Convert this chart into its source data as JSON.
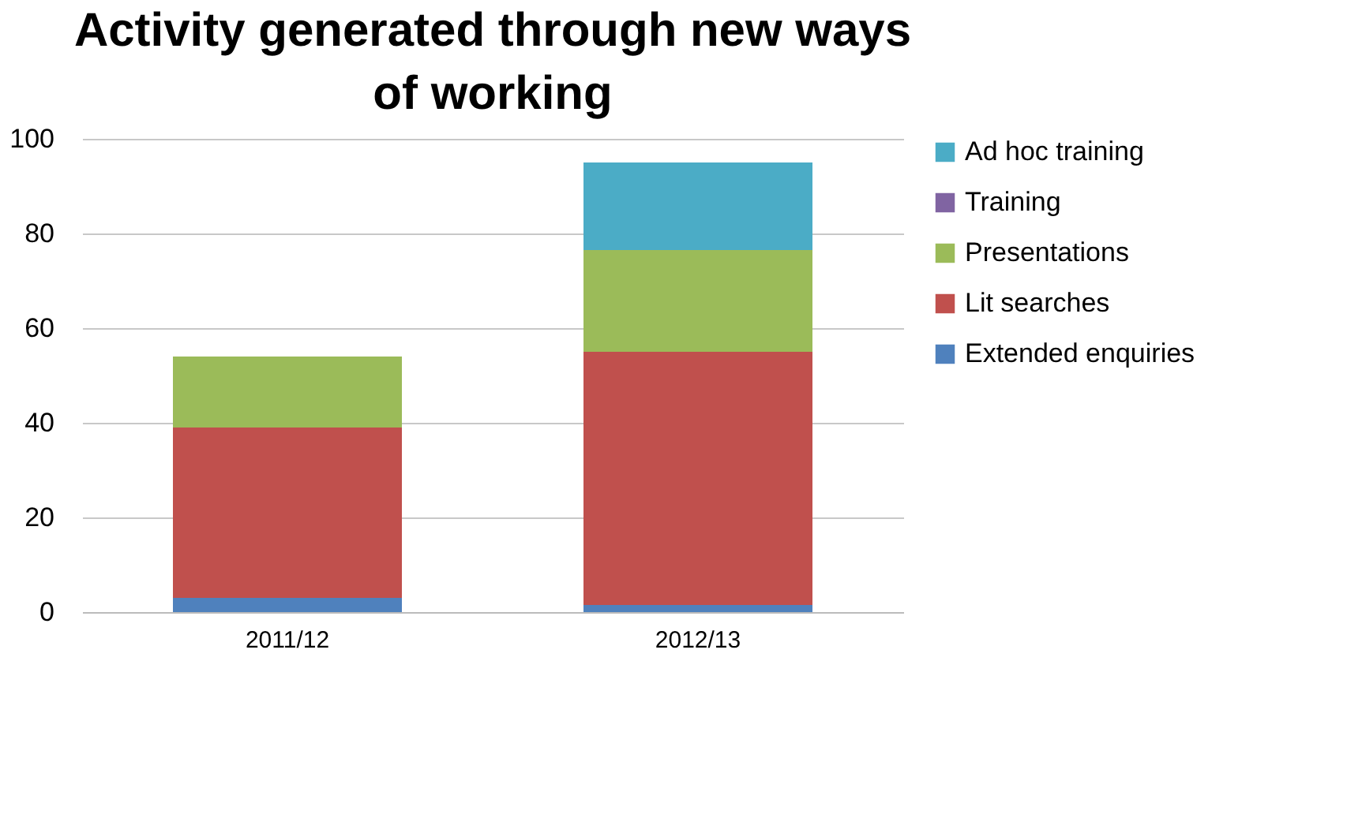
{
  "chart_data": {
    "type": "bar",
    "title": "Activity generated through new ways of working",
    "categories": [
      "2011/12",
      "2012/13"
    ],
    "stacked": true,
    "series": [
      {
        "name": "Extended enquiries",
        "color": "#4f81bd",
        "values": [
          3,
          1.5
        ]
      },
      {
        "name": "Lit searches",
        "color": "#c0504d",
        "values": [
          36,
          53.5
        ]
      },
      {
        "name": "Presentations",
        "color": "#9bbb59",
        "values": [
          15,
          21.5
        ]
      },
      {
        "name": "Training",
        "color": "#8064a2",
        "values": [
          0,
          0
        ]
      },
      {
        "name": "Ad hoc training",
        "color": "#4bacc6",
        "values": [
          null,
          18.5
        ]
      }
    ],
    "ylim": [
      0,
      100
    ],
    "yticks": [
      0,
      20,
      40,
      60,
      80,
      100
    ],
    "grid": "y",
    "legend": "right"
  }
}
